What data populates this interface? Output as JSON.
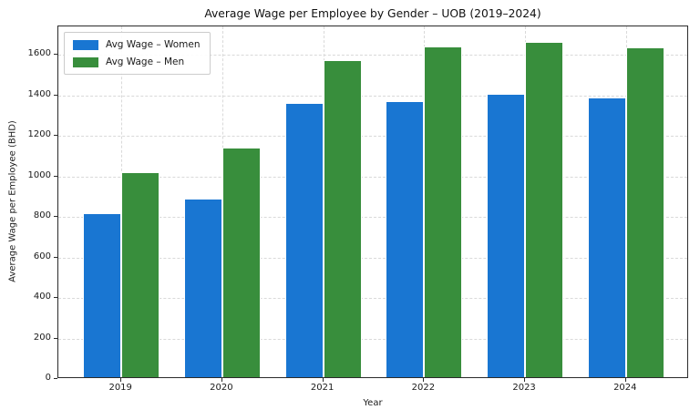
{
  "chart_data": {
    "type": "bar",
    "title": "Average Wage per Employee by Gender – UOB (2019–2024)",
    "xlabel": "Year",
    "ylabel": "Average Wage per Employee (BHD)",
    "categories": [
      "2019",
      "2020",
      "2021",
      "2022",
      "2023",
      "2024"
    ],
    "series": [
      {
        "name": "Avg Wage – Women",
        "color": "#1976d2",
        "values": [
          810,
          882,
          1352,
          1364,
          1398,
          1380
        ]
      },
      {
        "name": "Avg Wage – Men",
        "color": "#388e3c",
        "values": [
          1010,
          1132,
          1566,
          1632,
          1656,
          1626
        ]
      }
    ],
    "ylim": [
      0,
      1740
    ],
    "yticks": [
      0,
      200,
      400,
      600,
      800,
      1000,
      1200,
      1400,
      1600
    ],
    "grid": {
      "horizontal": true,
      "vertical": true,
      "style": "dashed"
    },
    "legend_position": "upper left",
    "bar_edge_color": "#ffffff"
  }
}
